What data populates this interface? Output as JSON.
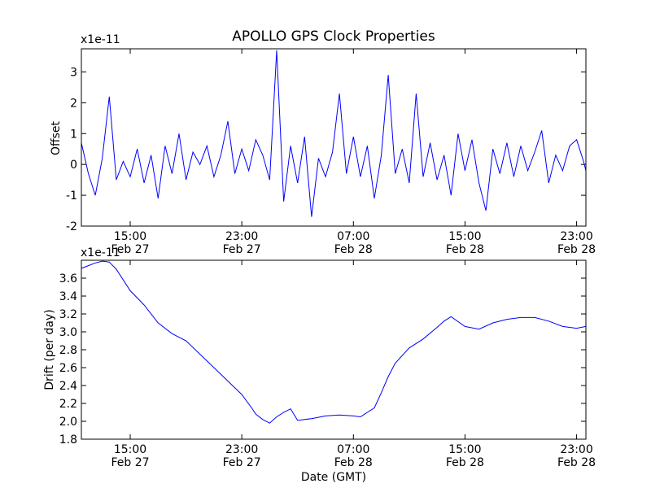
{
  "title": "APOLLO GPS Clock Properties",
  "xlabel": "Date (GMT)",
  "series_color": "#0000ff",
  "chart_data": [
    {
      "type": "line",
      "ylabel": "Offset",
      "scale_label": "x1e-11",
      "ylim": [
        -2,
        3.75
      ],
      "yticks": [
        "-2",
        "-1",
        "0",
        "1",
        "2",
        "3"
      ],
      "ytick_values": [
        -2,
        -1,
        0,
        1,
        2,
        3
      ],
      "xlim": [
        "2013-02-27T11:30",
        "2013-02-28T23:40"
      ],
      "xticks": [
        {
          "time": "2013-02-27T15:00",
          "line1": "15:00",
          "line2": "Feb 27"
        },
        {
          "time": "2013-02-27T23:00",
          "line1": "23:00",
          "line2": "Feb 27"
        },
        {
          "time": "2013-02-28T07:00",
          "line1": "07:00",
          "line2": "Feb 28"
        },
        {
          "time": "2013-02-28T15:00",
          "line1": "15:00",
          "line2": "Feb 28"
        },
        {
          "time": "2013-02-28T23:00",
          "line1": "23:00",
          "line2": "Feb 28"
        }
      ],
      "series": [
        {
          "name": "",
          "x": [
            "2013-02-27T11:30",
            "2013-02-27T12:00",
            "2013-02-27T12:30",
            "2013-02-27T13:00",
            "2013-02-27T13:30",
            "2013-02-27T14:00",
            "2013-02-27T14:30",
            "2013-02-27T15:00",
            "2013-02-27T15:30",
            "2013-02-27T16:00",
            "2013-02-27T16:30",
            "2013-02-27T17:00",
            "2013-02-27T17:30",
            "2013-02-27T18:00",
            "2013-02-27T18:30",
            "2013-02-27T19:00",
            "2013-02-27T19:30",
            "2013-02-27T20:00",
            "2013-02-27T20:30",
            "2013-02-27T21:00",
            "2013-02-27T21:30",
            "2013-02-27T22:00",
            "2013-02-27T22:30",
            "2013-02-27T23:00",
            "2013-02-27T23:30",
            "2013-02-28T00:00",
            "2013-02-28T00:30",
            "2013-02-28T01:00",
            "2013-02-28T01:30",
            "2013-02-28T02:00",
            "2013-02-28T02:30",
            "2013-02-28T03:00",
            "2013-02-28T03:30",
            "2013-02-28T04:00",
            "2013-02-28T04:30",
            "2013-02-28T05:00",
            "2013-02-28T05:30",
            "2013-02-28T06:00",
            "2013-02-28T06:30",
            "2013-02-28T07:00",
            "2013-02-28T07:30",
            "2013-02-28T08:00",
            "2013-02-28T08:30",
            "2013-02-28T09:00",
            "2013-02-28T09:30",
            "2013-02-28T10:00",
            "2013-02-28T10:30",
            "2013-02-28T11:00",
            "2013-02-28T11:30",
            "2013-02-28T12:00",
            "2013-02-28T12:30",
            "2013-02-28T13:00",
            "2013-02-28T13:30",
            "2013-02-28T14:00",
            "2013-02-28T14:30",
            "2013-02-28T15:00",
            "2013-02-28T15:30",
            "2013-02-28T16:00",
            "2013-02-28T16:30",
            "2013-02-28T17:00",
            "2013-02-28T17:30",
            "2013-02-28T18:00",
            "2013-02-28T18:30",
            "2013-02-28T19:00",
            "2013-02-28T19:30",
            "2013-02-28T20:00",
            "2013-02-28T20:30",
            "2013-02-28T21:00",
            "2013-02-28T21:30",
            "2013-02-28T22:00",
            "2013-02-28T22:30",
            "2013-02-28T23:00",
            "2013-02-28T23:30",
            "2013-02-28T23:40"
          ],
          "y": [
            0.7,
            -0.3,
            -1.0,
            0.2,
            2.2,
            -0.5,
            0.1,
            -0.4,
            0.5,
            -0.6,
            0.3,
            -1.1,
            0.6,
            -0.3,
            1.0,
            -0.5,
            0.4,
            0.0,
            0.6,
            -0.4,
            0.3,
            1.4,
            -0.3,
            0.5,
            -0.2,
            0.8,
            0.3,
            -0.5,
            3.7,
            -1.2,
            0.6,
            -0.6,
            0.9,
            -1.7,
            0.2,
            -0.4,
            0.4,
            2.3,
            -0.3,
            0.9,
            -0.4,
            0.6,
            -1.1,
            0.3,
            2.9,
            -0.3,
            0.5,
            -0.6,
            2.3,
            -0.4,
            0.7,
            -0.5,
            0.3,
            -1.0,
            1.0,
            -0.2,
            0.8,
            -0.6,
            -1.5,
            0.5,
            -0.3,
            0.7,
            -0.4,
            0.6,
            -0.2,
            0.4,
            1.1,
            -0.6,
            0.3,
            -0.2,
            0.6,
            0.8,
            0.1,
            -0.2
          ]
        }
      ]
    },
    {
      "type": "line",
      "ylabel": "Drift (per day)",
      "scale_label": "x1e-11",
      "ylim": [
        1.8,
        3.8
      ],
      "yticks": [
        "1.8",
        "2.0",
        "2.2",
        "2.4",
        "2.6",
        "2.8",
        "3.0",
        "3.2",
        "3.4",
        "3.6"
      ],
      "ytick_values": [
        1.8,
        2.0,
        2.2,
        2.4,
        2.6,
        2.8,
        3.0,
        3.2,
        3.4,
        3.6
      ],
      "xlim": [
        "2013-02-27T11:30",
        "2013-02-28T23:40"
      ],
      "xticks": [
        {
          "time": "2013-02-27T15:00",
          "line1": "15:00",
          "line2": "Feb 27"
        },
        {
          "time": "2013-02-27T23:00",
          "line1": "23:00",
          "line2": "Feb 27"
        },
        {
          "time": "2013-02-28T07:00",
          "line1": "07:00",
          "line2": "Feb 28"
        },
        {
          "time": "2013-02-28T15:00",
          "line1": "15:00",
          "line2": "Feb 28"
        },
        {
          "time": "2013-02-28T23:00",
          "line1": "23:00",
          "line2": "Feb 28"
        }
      ],
      "series": [
        {
          "name": "",
          "x": [
            "2013-02-27T11:30",
            "2013-02-27T12:00",
            "2013-02-27T12:30",
            "2013-02-27T13:00",
            "2013-02-27T13:30",
            "2013-02-27T14:00",
            "2013-02-27T15:00",
            "2013-02-27T16:00",
            "2013-02-27T17:00",
            "2013-02-27T18:00",
            "2013-02-27T19:00",
            "2013-02-27T20:00",
            "2013-02-27T21:00",
            "2013-02-27T22:00",
            "2013-02-27T23:00",
            "2013-02-27T23:45",
            "2013-02-28T00:00",
            "2013-02-28T00:30",
            "2013-02-28T01:00",
            "2013-02-28T01:30",
            "2013-02-28T02:00",
            "2013-02-28T02:30",
            "2013-02-28T03:00",
            "2013-02-28T04:00",
            "2013-02-28T05:00",
            "2013-02-28T06:00",
            "2013-02-28T07:00",
            "2013-02-28T07:30",
            "2013-02-28T08:00",
            "2013-02-28T08:30",
            "2013-02-28T09:00",
            "2013-02-28T09:30",
            "2013-02-28T10:00",
            "2013-02-28T11:00",
            "2013-02-28T12:00",
            "2013-02-28T13:00",
            "2013-02-28T13:30",
            "2013-02-28T14:00",
            "2013-02-28T15:00",
            "2013-02-28T16:00",
            "2013-02-28T17:00",
            "2013-02-28T18:00",
            "2013-02-28T19:00",
            "2013-02-28T20:00",
            "2013-02-28T21:00",
            "2013-02-28T22:00",
            "2013-02-28T23:00",
            "2013-02-28T23:40"
          ],
          "y": [
            3.71,
            3.74,
            3.77,
            3.79,
            3.78,
            3.7,
            3.46,
            3.3,
            3.1,
            2.98,
            2.9,
            2.75,
            2.6,
            2.45,
            2.3,
            2.14,
            2.08,
            2.02,
            1.98,
            2.05,
            2.1,
            2.14,
            2.01,
            2.03,
            2.06,
            2.07,
            2.06,
            2.05,
            2.1,
            2.15,
            2.32,
            2.5,
            2.65,
            2.82,
            2.92,
            3.05,
            3.12,
            3.17,
            3.06,
            3.03,
            3.1,
            3.14,
            3.16,
            3.16,
            3.12,
            3.06,
            3.04,
            3.06
          ]
        }
      ]
    }
  ]
}
